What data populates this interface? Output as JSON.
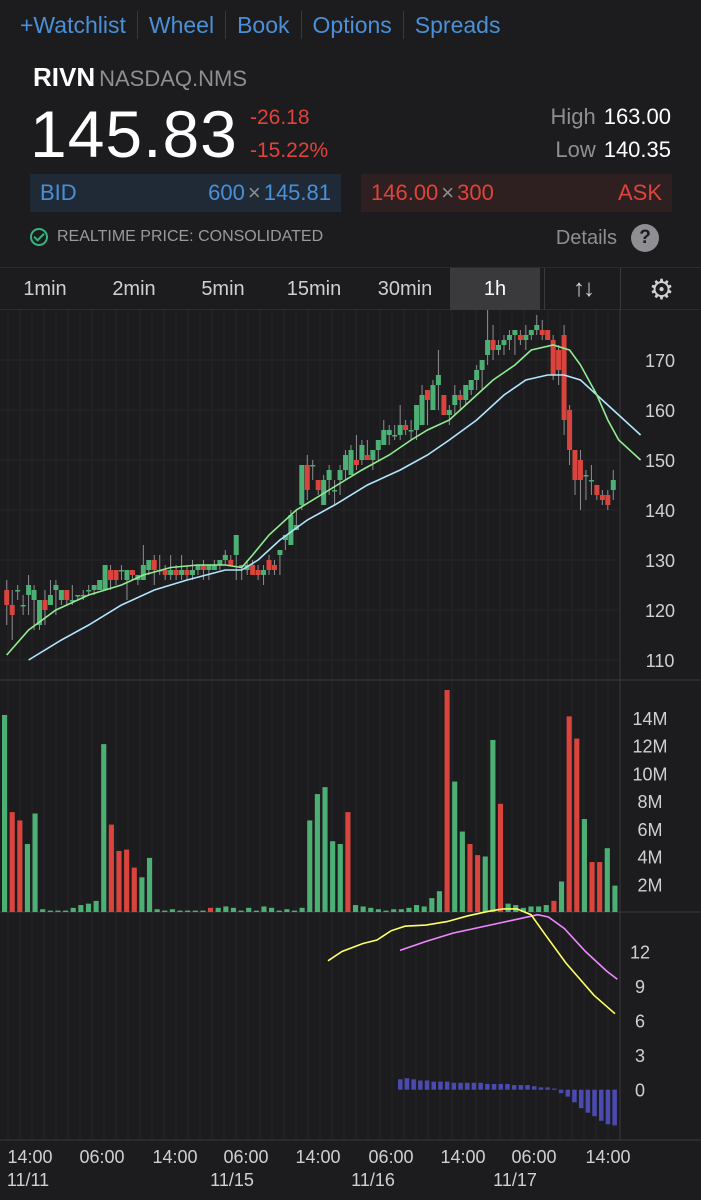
{
  "nav": [
    "+Watchlist",
    "Wheel",
    "Book",
    "Options",
    "Spreads"
  ],
  "symbol": "RIVN",
  "exchange": "NASDAQ.NMS",
  "last_price": "145.83",
  "change": "-26.18",
  "change_pct": "-15.22%",
  "high_label": "High",
  "high": "163.00",
  "low_label": "Low",
  "low": "140.35",
  "bid": {
    "label": "BID",
    "size": "600",
    "x": "×",
    "price": "145.81"
  },
  "ask": {
    "label": "ASK",
    "size": "300",
    "x": "×",
    "price": "146.00"
  },
  "realtime_label": "REALTIME PRICE: CONSOLIDATED",
  "details_label": "Details",
  "details_icon": "?",
  "timeframes": [
    "1min",
    "2min",
    "5min",
    "15min",
    "30min",
    "1h"
  ],
  "active_timeframe": "1h",
  "sort_icon": "↑↓",
  "gear_icon": "⚙",
  "colors": {
    "up": "#4caf74",
    "down": "#d9443c",
    "accent": "#4a90d9",
    "ema_fast": "#90ee90",
    "ema_slow": "#b0e6ff",
    "signal_yellow": "#ffff66",
    "signal_violet": "#ee88ff",
    "hist": "#4a4ab0"
  },
  "chart_data": [
    {
      "type": "candlestick",
      "name": "price",
      "ylim": [
        106,
        180
      ],
      "yticks": [
        "110",
        "120",
        "130",
        "140",
        "150",
        "160",
        "170"
      ],
      "candles": [
        [
          124,
          121,
          126,
          117
        ],
        [
          121,
          119,
          124,
          114
        ],
        [
          124,
          124,
          125,
          122
        ],
        [
          121,
          121,
          123,
          119
        ],
        [
          123,
          125,
          127,
          119
        ],
        [
          122,
          124,
          125,
          116
        ],
        [
          117,
          122,
          122,
          116
        ],
        [
          122,
          120,
          124,
          117
        ],
        [
          121,
          123,
          126,
          121
        ],
        [
          124,
          125,
          126,
          119
        ],
        [
          122,
          124,
          124,
          121
        ],
        [
          124,
          122,
          124,
          121
        ],
        [
          122,
          122,
          125,
          121
        ],
        [
          123,
          123,
          123,
          122
        ],
        [
          123,
          123,
          124,
          122
        ],
        [
          124,
          124,
          125,
          123
        ],
        [
          124,
          125,
          125,
          123
        ],
        [
          124,
          126,
          126,
          124
        ],
        [
          124,
          129,
          129,
          124
        ],
        [
          128,
          126,
          129,
          124
        ],
        [
          128,
          126,
          128,
          125
        ],
        [
          128,
          128,
          129,
          126
        ],
        [
          126,
          128,
          128,
          122
        ],
        [
          128,
          127,
          128,
          126
        ],
        [
          126,
          127,
          127,
          125
        ],
        [
          126,
          129,
          133,
          126
        ],
        [
          128,
          130,
          130,
          127
        ],
        [
          130,
          128,
          131,
          125
        ],
        [
          128,
          128,
          131,
          127
        ],
        [
          128,
          127,
          129,
          126
        ],
        [
          127,
          128,
          131,
          126
        ],
        [
          128,
          127,
          129,
          126
        ],
        [
          127,
          128,
          131,
          126
        ],
        [
          128,
          127,
          129,
          126
        ],
        [
          127,
          128,
          130,
          126
        ],
        [
          128,
          129,
          129,
          127
        ],
        [
          129,
          128,
          130,
          126
        ],
        [
          128,
          129,
          129,
          126
        ],
        [
          128,
          129,
          130,
          128
        ],
        [
          129,
          130,
          130,
          128
        ],
        [
          130,
          131,
          132,
          129
        ],
        [
          130,
          129,
          131,
          129
        ],
        [
          131,
          135,
          135,
          126
        ],
        [
          129,
          129,
          129,
          126
        ],
        [
          128,
          129,
          130,
          127
        ],
        [
          129,
          127,
          130,
          127
        ],
        [
          128,
          127,
          129,
          126
        ],
        [
          127,
          128,
          129,
          125
        ],
        [
          130,
          128,
          131,
          127
        ],
        [
          129,
          128,
          130,
          127
        ],
        [
          131,
          132,
          132,
          127
        ],
        [
          134,
          135,
          135,
          132
        ],
        [
          133,
          139,
          140,
          133
        ],
        [
          136,
          137,
          140,
          136
        ],
        [
          141,
          149,
          149,
          140
        ],
        [
          149,
          144,
          151,
          142
        ],
        [
          149,
          149,
          150,
          146
        ],
        [
          146,
          144,
          146,
          143
        ],
        [
          141,
          146,
          147,
          141
        ],
        [
          146,
          148,
          149,
          143
        ],
        [
          144,
          144,
          146,
          141
        ],
        [
          146,
          148,
          149,
          143
        ],
        [
          148,
          151,
          152,
          146
        ],
        [
          147,
          152,
          153,
          147
        ],
        [
          150,
          149,
          155,
          148
        ],
        [
          150,
          153,
          154,
          149
        ],
        [
          151,
          150,
          154,
          150
        ],
        [
          150,
          152,
          152,
          148
        ],
        [
          152,
          154,
          154,
          150
        ],
        [
          153,
          156,
          158,
          153
        ],
        [
          155,
          156,
          157,
          153
        ],
        [
          155,
          155,
          157,
          154
        ],
        [
          155,
          157,
          161,
          154
        ],
        [
          157,
          156,
          158,
          155
        ],
        [
          156,
          156,
          158,
          154
        ],
        [
          156,
          161,
          161,
          154
        ],
        [
          157,
          163,
          165,
          157
        ],
        [
          164,
          162,
          164,
          157
        ],
        [
          160,
          165,
          166,
          160
        ],
        [
          165,
          167,
          172,
          160
        ],
        [
          163,
          159,
          163,
          159
        ],
        [
          159,
          160,
          161,
          157
        ],
        [
          161,
          163,
          165,
          159
        ],
        [
          163,
          162,
          164,
          160
        ],
        [
          162,
          165,
          165,
          161
        ],
        [
          164,
          166,
          166,
          163
        ],
        [
          166,
          168,
          169,
          164
        ],
        [
          168,
          170,
          170,
          164
        ],
        [
          171,
          174,
          180,
          169
        ],
        [
          174,
          172,
          177,
          170
        ],
        [
          172,
          173,
          174,
          171
        ],
        [
          173,
          174,
          175,
          171
        ],
        [
          174,
          175,
          176,
          172
        ],
        [
          175,
          176,
          176,
          171
        ],
        [
          175,
          174,
          176,
          173
        ],
        [
          174,
          175,
          177,
          172
        ],
        [
          175,
          176,
          176,
          174
        ],
        [
          176,
          177,
          179,
          175
        ],
        [
          176,
          175,
          178,
          174
        ],
        [
          176,
          174,
          176,
          174
        ],
        [
          174,
          167,
          175,
          166
        ],
        [
          172,
          168,
          173,
          165
        ],
        [
          175,
          158,
          177,
          155
        ],
        [
          160,
          152,
          161,
          149
        ],
        [
          152,
          146,
          152,
          143
        ],
        [
          150,
          146,
          152,
          140
        ],
        [
          147,
          147,
          148,
          142
        ],
        [
          146,
          146,
          149,
          143
        ],
        [
          145,
          143,
          145,
          142
        ],
        [
          143,
          142,
          144,
          141
        ],
        [
          143,
          141,
          144,
          140
        ],
        [
          144,
          146,
          148,
          142
        ]
      ],
      "ema_fast": [
        [
          0,
          111
        ],
        [
          8,
          116
        ],
        [
          18,
          120
        ],
        [
          30,
          123
        ],
        [
          42,
          125
        ],
        [
          50,
          127
        ],
        [
          60,
          128.5
        ],
        [
          70,
          129
        ],
        [
          80,
          129
        ],
        [
          86,
          128.5
        ],
        [
          90,
          131
        ],
        [
          96,
          135
        ],
        [
          106,
          140
        ],
        [
          118,
          144
        ],
        [
          130,
          148
        ],
        [
          140,
          151
        ],
        [
          148,
          154
        ],
        [
          154,
          156
        ],
        [
          162,
          158
        ],
        [
          170,
          162
        ],
        [
          178,
          166
        ],
        [
          186,
          169
        ],
        [
          192,
          172
        ],
        [
          200,
          173
        ],
        [
          206,
          172
        ],
        [
          210,
          169
        ],
        [
          216,
          163
        ],
        [
          220,
          158
        ],
        [
          224,
          154
        ],
        [
          232,
          150
        ]
      ],
      "ema_slow": [
        [
          8,
          110
        ],
        [
          20,
          114
        ],
        [
          30,
          117
        ],
        [
          42,
          121
        ],
        [
          54,
          124
        ],
        [
          66,
          126
        ],
        [
          80,
          128
        ],
        [
          86,
          128
        ],
        [
          92,
          130
        ],
        [
          100,
          134
        ],
        [
          110,
          138
        ],
        [
          120,
          141
        ],
        [
          132,
          145
        ],
        [
          144,
          148
        ],
        [
          154,
          151
        ],
        [
          162,
          154
        ],
        [
          172,
          158
        ],
        [
          182,
          163
        ],
        [
          190,
          166
        ],
        [
          198,
          167
        ],
        [
          204,
          167
        ],
        [
          210,
          166
        ],
        [
          218,
          162
        ],
        [
          226,
          158
        ],
        [
          232,
          155
        ]
      ]
    },
    {
      "type": "bar",
      "name": "volume",
      "ylim": [
        0,
        16
      ],
      "yticks": [
        "2M",
        "4M",
        "6M",
        "8M",
        "10M",
        "12M",
        "14M"
      ],
      "values": [
        14.2,
        7.2,
        6.6,
        4.9,
        7.1,
        0.2,
        0.1,
        0.1,
        0.1,
        0.3,
        0.5,
        0.6,
        0.8,
        12.1,
        6.3,
        4.4,
        4.5,
        3.2,
        2.5,
        3.9,
        0.2,
        0.1,
        0.2,
        0.1,
        0.1,
        0.1,
        0.1,
        0.3,
        0.3,
        0.4,
        0.3,
        0.1,
        0.3,
        0.1,
        0.4,
        0.3,
        0.1,
        0.2,
        0.1,
        0.3,
        6.6,
        8.5,
        9.0,
        5.1,
        4.9,
        7.2,
        0.5,
        0.4,
        0.3,
        0.2,
        0.1,
        0.2,
        0.2,
        0.3,
        0.5,
        0.4,
        1.0,
        1.5,
        16.0,
        9.4,
        5.8,
        4.9,
        4.1,
        4.0,
        12.4,
        7.8,
        0.6,
        0.5,
        0.3,
        0.4,
        0.4,
        0.5,
        0.8,
        2.2,
        14.1,
        12.5,
        6.7,
        3.6,
        3.6,
        4.6,
        1.9
      ],
      "colors": "up,down,down,up,up,up,up,up,up,up,up,up,up,up,down,down,down,down,up,up,up,up,up,up,up,up,up,down,up,up,up,up,up,up,up,up,up,up,up,up,up,up,up,up,up,down,up,up,up,up,up,up,up,up,up,up,up,up,down,up,up,down,down,up,up,down,up,up,up,up,up,up,down,up,down,down,up,down,down,up,up"
    },
    {
      "type": "line",
      "name": "macd",
      "ylim": [
        -3.5,
        15
      ],
      "yticks": [
        "0",
        "3",
        "6",
        "9",
        "12"
      ],
      "macd": [
        [
          0,
          11.2
        ],
        [
          4,
          12.0
        ],
        [
          10,
          12.7
        ],
        [
          14,
          13.0
        ],
        [
          18,
          13.8
        ],
        [
          22,
          14.2
        ],
        [
          28,
          14.3
        ],
        [
          34,
          14.6
        ],
        [
          40,
          15.1
        ],
        [
          46,
          15.5
        ],
        [
          50,
          15.7
        ],
        [
          54,
          15.7
        ],
        [
          58,
          15.2
        ],
        [
          62,
          13.5
        ],
        [
          68,
          11.0
        ],
        [
          76,
          8.2
        ],
        [
          82,
          6.6
        ]
      ],
      "signal": [
        [
          0,
          12.1
        ],
        [
          10,
          12.9
        ],
        [
          20,
          13.6
        ],
        [
          30,
          14.1
        ],
        [
          40,
          14.6
        ],
        [
          46,
          14.9
        ],
        [
          52,
          15.2
        ],
        [
          56,
          15.0
        ],
        [
          62,
          14.0
        ],
        [
          70,
          12.0
        ],
        [
          78,
          10.3
        ],
        [
          82,
          9.6
        ]
      ],
      "histogram": [
        0.9,
        1.0,
        0.9,
        0.8,
        0.8,
        0.7,
        0.7,
        0.7,
        0.6,
        0.6,
        0.6,
        0.6,
        0.6,
        0.5,
        0.5,
        0.5,
        0.5,
        0.4,
        0.4,
        0.4,
        0.3,
        0.2,
        0.2,
        0.1,
        -0.3,
        -0.6,
        -1.1,
        -1.6,
        -2.0,
        -2.3,
        -2.7,
        -3.0,
        -3.1
      ],
      "xticks": [
        "14:00",
        "06:00",
        "14:00",
        "06:00",
        "14:00",
        "06:00",
        "14:00",
        "06:00",
        "14:00"
      ],
      "date_labels": [
        "11/11",
        "11/15",
        "11/16",
        "11/17"
      ]
    }
  ]
}
